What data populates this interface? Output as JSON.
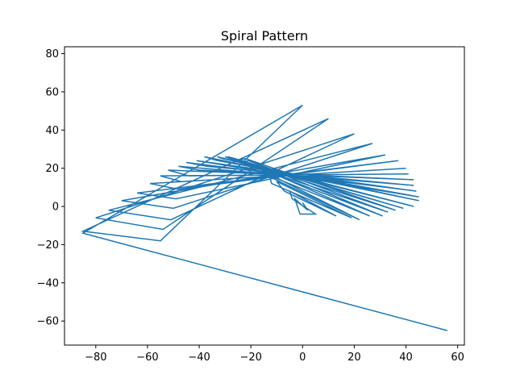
{
  "chart_data": {
    "type": "line",
    "title": "Spiral Pattern",
    "xlabel": "",
    "ylabel": "",
    "xlim": [
      -92.1,
      62.6
    ],
    "ylim": [
      -72.6,
      83.6
    ],
    "xticks": [
      -80,
      -60,
      -40,
      -20,
      0,
      20,
      40,
      60
    ],
    "yticks": [
      -60,
      -40,
      -20,
      0,
      20,
      40,
      60,
      80
    ],
    "xtick_labels": [
      "−80",
      "−60",
      "−40",
      "−20",
      "0",
      "20",
      "40",
      "60"
    ],
    "ytick_labels": [
      "−60",
      "−40",
      "−20",
      "0",
      "20",
      "40",
      "60",
      "80"
    ],
    "grid": false,
    "legend": "none",
    "series_color": "#1f77b4",
    "series": [
      {
        "x": [
          0,
          2,
          -3,
          -1,
          5,
          -4,
          -5,
          13,
          -7,
          -10,
          19,
          -12,
          -13,
          22,
          -15,
          -16,
          26,
          -20,
          -17,
          31,
          -23,
          -21,
          33,
          -26,
          -22,
          36,
          -29,
          -26,
          39,
          -30,
          -28,
          43,
          -33,
          -31,
          45,
          -38,
          -33,
          45,
          -41,
          -36,
          44,
          -45,
          -37,
          43,
          -48,
          -40,
          43,
          -52,
          -44,
          41,
          -55,
          -47,
          40,
          -59,
          -48,
          37,
          -64,
          -49,
          32,
          -70,
          -50,
          27,
          -75,
          -51,
          20,
          -80,
          -54,
          10,
          -85,
          -55,
          0,
          -85,
          56
        ],
        "y": [
          2,
          -2,
          4,
          -4,
          -4,
          4,
          8,
          -5,
          8,
          13,
          -6,
          12,
          17,
          -7,
          17,
          20,
          -5,
          20,
          22,
          -5,
          23,
          24,
          -3,
          24,
          25,
          -2,
          26,
          25,
          -1,
          26,
          25,
          0,
          26,
          25,
          3,
          26,
          24,
          5,
          24,
          23,
          8,
          23,
          21,
          11,
          21,
          19,
          14,
          19,
          16,
          17,
          16,
          13,
          20,
          12,
          9,
          24,
          7,
          4,
          27,
          3,
          -1,
          33,
          -2,
          -7,
          38,
          -6,
          -12,
          46,
          -13,
          -18,
          53,
          -14,
          -65
        ]
      }
    ]
  }
}
